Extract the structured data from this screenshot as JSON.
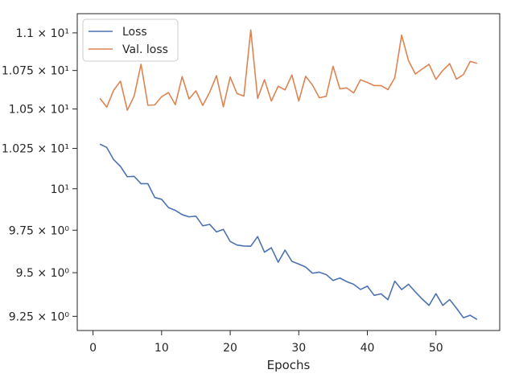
{
  "chart_data": {
    "type": "line",
    "xlabel": "Epochs",
    "ylabel": "",
    "yscale": "log",
    "xlim": [
      -2.3,
      59.3
    ],
    "ylim": [
      9.17,
      11.13
    ],
    "grid": false,
    "legend_position": "top-left",
    "x_ticks": [
      0,
      10,
      20,
      30,
      40,
      50
    ],
    "y_ticks": [
      {
        "value": 9.25,
        "label": "9.25 × 10⁰"
      },
      {
        "value": 9.5,
        "label": "9.5 × 10⁰"
      },
      {
        "value": 9.75,
        "label": "9.75 × 10⁰"
      },
      {
        "value": 10,
        "label": "10¹"
      },
      {
        "value": 10.25,
        "label": "1.025 × 10¹"
      },
      {
        "value": 10.5,
        "label": "1.05 × 10¹"
      },
      {
        "value": 10.75,
        "label": "1.075 × 10¹"
      },
      {
        "value": 11,
        "label": "1.1 × 10¹"
      }
    ],
    "x": [
      1,
      2,
      3,
      4,
      5,
      6,
      7,
      8,
      9,
      10,
      11,
      12,
      13,
      14,
      15,
      16,
      17,
      18,
      19,
      20,
      21,
      22,
      23,
      24,
      25,
      26,
      27,
      28,
      29,
      30,
      31,
      32,
      33,
      34,
      35,
      36,
      37,
      38,
      39,
      40,
      41,
      42,
      43,
      44,
      45,
      46,
      47,
      48,
      49,
      50,
      51,
      52,
      53,
      54,
      55,
      56
    ],
    "series": [
      {
        "name": "Loss",
        "color": "#4c72b0",
        "values": [
          10.277,
          10.256,
          10.18,
          10.138,
          10.074,
          10.076,
          10.031,
          10.031,
          9.947,
          9.936,
          9.886,
          9.869,
          9.843,
          9.83,
          9.834,
          9.776,
          9.785,
          9.74,
          9.755,
          9.683,
          9.662,
          9.656,
          9.655,
          9.712,
          9.62,
          9.646,
          9.561,
          9.632,
          9.566,
          9.55,
          9.533,
          9.497,
          9.503,
          9.489,
          9.455,
          9.469,
          9.448,
          9.433,
          9.403,
          9.422,
          9.369,
          9.378,
          9.344,
          9.451,
          9.402,
          9.433,
          9.389,
          9.348,
          9.312,
          9.379,
          9.312,
          9.345,
          9.296,
          9.242,
          9.256,
          9.232
        ]
      },
      {
        "name": "Val. loss",
        "color": "#dd8452",
        "values": [
          10.569,
          10.512,
          10.62,
          10.68,
          10.492,
          10.584,
          10.791,
          10.524,
          10.526,
          10.579,
          10.606,
          10.528,
          10.71,
          10.565,
          10.617,
          10.523,
          10.607,
          10.716,
          10.514,
          10.707,
          10.599,
          10.583,
          11.02,
          10.568,
          10.69,
          10.551,
          10.647,
          10.623,
          10.721,
          10.551,
          10.712,
          10.655,
          10.572,
          10.582,
          10.778,
          10.63,
          10.636,
          10.604,
          10.689,
          10.672,
          10.651,
          10.651,
          10.625,
          10.702,
          10.985,
          10.815,
          10.727,
          10.76,
          10.791,
          10.692,
          10.75,
          10.795,
          10.693,
          10.723,
          10.81,
          10.797
        ]
      }
    ]
  }
}
